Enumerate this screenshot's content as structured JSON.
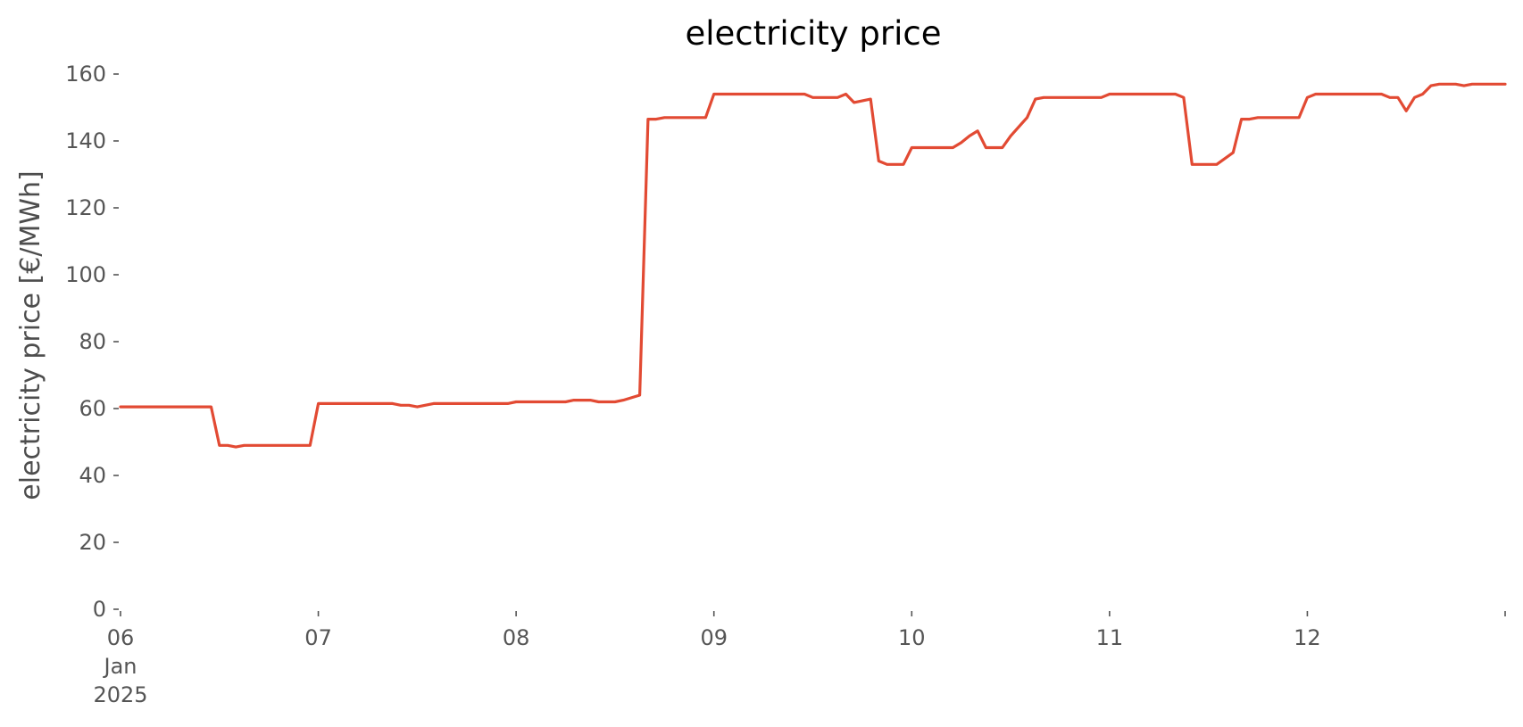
{
  "chart_data": {
    "type": "line",
    "title": "electricity price",
    "xlabel": "",
    "ylabel": "electricity price [€/MWh]",
    "ylim": [
      0,
      160
    ],
    "yticks": [
      0,
      20,
      40,
      60,
      80,
      100,
      120,
      140,
      160
    ],
    "xlim_days": [
      6,
      13
    ],
    "xticks": [
      {
        "day": 6,
        "label": "06",
        "sublabel": "Jan",
        "sublabel2": "2025"
      },
      {
        "day": 7,
        "label": "07"
      },
      {
        "day": 8,
        "label": "08"
      },
      {
        "day": 9,
        "label": "09"
      },
      {
        "day": 10,
        "label": "10"
      },
      {
        "day": 11,
        "label": "11"
      },
      {
        "day": 12,
        "label": "12"
      },
      {
        "day": 13,
        "label": ""
      }
    ],
    "grid": false,
    "legend": "none",
    "series": [
      {
        "color": "#e24a33",
        "x_days": [
          6.0,
          6.458,
          6.5,
          6.542,
          6.583,
          6.625,
          6.667,
          6.958,
          7.0,
          7.375,
          7.417,
          7.458,
          7.5,
          7.583,
          7.958,
          8.0,
          8.25,
          8.292,
          8.375,
          8.417,
          8.5,
          8.542,
          8.625,
          8.667,
          8.708,
          8.75,
          8.792,
          8.833,
          8.958,
          9.0,
          9.458,
          9.5,
          9.625,
          9.667,
          9.708,
          9.792,
          9.833,
          9.875,
          9.958,
          10.0,
          10.208,
          10.25,
          10.292,
          10.333,
          10.375,
          10.458,
          10.5,
          10.583,
          10.625,
          10.667,
          10.958,
          11.0,
          11.333,
          11.375,
          11.417,
          11.458,
          11.542,
          11.625,
          11.667,
          11.708,
          11.75,
          11.958,
          12.0,
          12.042,
          12.375,
          12.417,
          12.458,
          12.5,
          12.542,
          12.583,
          12.625,
          12.667,
          12.75,
          12.792,
          12.833,
          12.875,
          13.0
        ],
        "values": [
          60.5,
          60.5,
          49,
          49,
          48.5,
          49,
          49,
          49,
          61.5,
          61.5,
          61,
          61,
          60.5,
          61.5,
          61.5,
          62,
          62,
          62.5,
          62.5,
          62,
          62,
          62.5,
          64,
          146.5,
          146.5,
          147,
          147,
          147,
          147,
          154,
          154,
          153,
          153,
          154,
          151.5,
          152.5,
          134,
          133,
          133,
          138,
          138,
          139.5,
          141.5,
          143,
          138,
          138,
          141.5,
          147,
          152.5,
          153,
          153,
          154,
          154,
          153,
          133,
          133,
          133,
          136.5,
          146.5,
          146.5,
          147,
          147,
          153,
          154,
          154,
          153,
          153,
          149,
          153,
          154,
          156.5,
          157,
          157,
          156.5,
          157,
          157,
          157
        ]
      }
    ]
  }
}
